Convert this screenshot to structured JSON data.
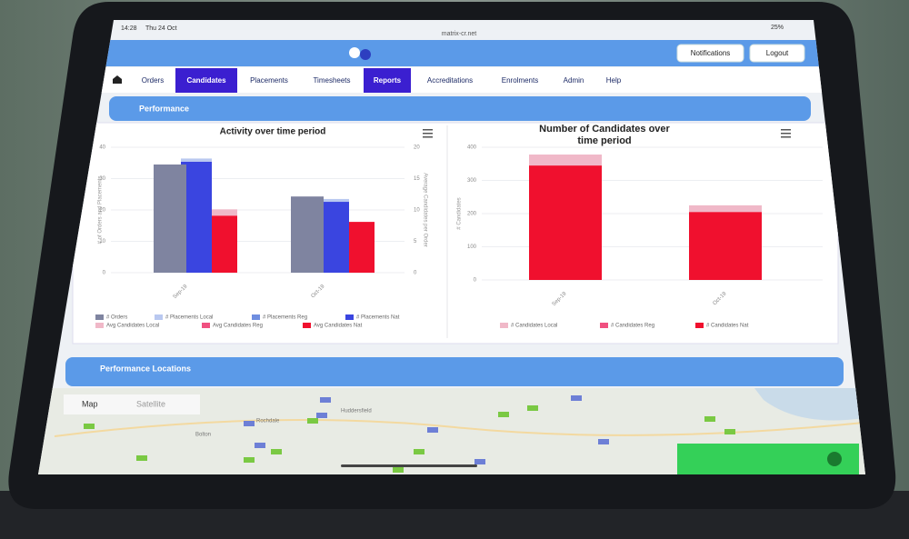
{
  "status_bar": {
    "time": "14:28",
    "date": "Thu 24 Oct",
    "url": "matrix-cr.net",
    "battery": "25%"
  },
  "header": {
    "buttons": [
      "Notifications",
      "Logout"
    ]
  },
  "nav": [
    "Orders",
    "Candidates",
    "Placements",
    "Timesheets",
    "Reports",
    "Accreditations",
    "Enrolments",
    "Admin",
    "Help"
  ],
  "nav_active": [
    "Candidates",
    "Reports"
  ],
  "sections": [
    "Performance",
    "Performance Locations"
  ],
  "chart_data": [
    {
      "type": "bar",
      "title": "Activity over time period",
      "categories": [
        "Sep-19",
        "Oct-19"
      ],
      "y_label": "# of Orders and Placements",
      "y2_label": "Average Candidates per Order",
      "ylim": [
        0,
        40
      ],
      "yticks": [
        0,
        10,
        20,
        30,
        40
      ],
      "y2lim": [
        0,
        20
      ],
      "y2ticks": [
        0,
        5,
        10,
        15,
        20
      ],
      "grid": true,
      "series": [
        {
          "name": "# Orders",
          "color": "#7f84a0",
          "values": [
            34.5,
            24.3
          ]
        },
        {
          "name": "# Placements Local",
          "color": "#b9c8f0",
          "values": [
            1,
            0.9
          ],
          "stack": "placements"
        },
        {
          "name": "# Placements Reg",
          "color": "#6f8ee0",
          "values": [
            0,
            0
          ],
          "stack": "placements"
        },
        {
          "name": "# Placements Nat",
          "color": "#3a45e0",
          "values": [
            35.4,
            22.6
          ],
          "stack": "placements"
        },
        {
          "name": "Avg Candidates Local",
          "color": "#f0b8c8",
          "values": [
            1,
            0
          ],
          "stack": "avg",
          "axis": "y2"
        },
        {
          "name": "Avg Candidates Reg",
          "color": "#f05080",
          "values": [
            0,
            0
          ],
          "stack": "avg",
          "axis": "y2"
        },
        {
          "name": "Avg Candidates Nat",
          "color": "#f0102e",
          "values": [
            9.1,
            8.1
          ],
          "stack": "avg",
          "axis": "y2"
        }
      ]
    },
    {
      "type": "bar",
      "title": "Number of Candidates over time period",
      "categories": [
        "Sep-19",
        "Oct-19"
      ],
      "y_label": "# Candidates",
      "ylim": [
        0,
        400
      ],
      "yticks": [
        0,
        100,
        200,
        300,
        400
      ],
      "grid": true,
      "series": [
        {
          "name": "# Candidates Local",
          "color": "#f0b8c8",
          "values": [
            33,
            20
          ],
          "stack": "cand"
        },
        {
          "name": "# Candidates Reg",
          "color": "#f05080",
          "values": [
            0,
            0
          ],
          "stack": "cand"
        },
        {
          "name": "# Candidates Nat",
          "color": "#f0102e",
          "values": [
            345,
            205
          ],
          "stack": "cand"
        }
      ]
    }
  ],
  "map": {
    "tabs": [
      "Map",
      "Satellite"
    ],
    "places": [
      "Bolton",
      "Rochdale",
      "Huddersfield"
    ]
  }
}
